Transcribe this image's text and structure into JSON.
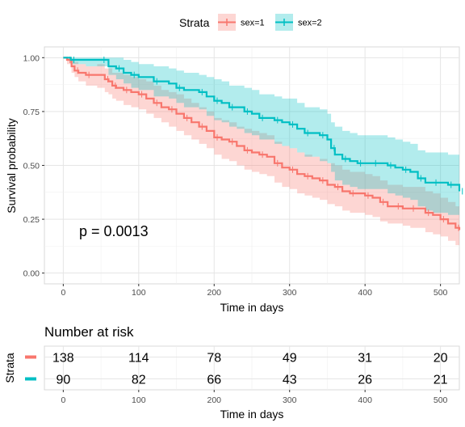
{
  "legend": {
    "title": "Strata",
    "items": [
      {
        "label": "sex=1",
        "color": "#F8766D"
      },
      {
        "label": "sex=2",
        "color": "#00BFC4"
      }
    ]
  },
  "chart_data": [
    {
      "type": "line",
      "subtype": "kaplan-meier survival curve with confidence bands",
      "xlabel": "Time in days",
      "ylabel": "Survival probability",
      "xlim": [
        -25,
        525
      ],
      "ylim": [
        -0.05,
        1.05
      ],
      "x_ticks": [
        0,
        100,
        200,
        300,
        400,
        500
      ],
      "y_ticks": [
        0.0,
        0.25,
        0.5,
        0.75,
        1.0
      ],
      "y_tick_labels": [
        "0.00",
        "0.25",
        "0.50",
        "0.75",
        "1.00"
      ],
      "grid": true,
      "annotation": "p = 0.0013",
      "series": [
        {
          "name": "sex=1",
          "color": "#F8766D",
          "x": [
            0,
            5,
            11,
            15,
            20,
            30,
            45,
            55,
            60,
            65,
            70,
            80,
            90,
            100,
            110,
            120,
            130,
            140,
            150,
            160,
            170,
            180,
            190,
            200,
            210,
            220,
            230,
            240,
            250,
            260,
            270,
            280,
            290,
            300,
            310,
            320,
            330,
            340,
            350,
            360,
            370,
            380,
            390,
            400,
            410,
            420,
            430,
            440,
            450,
            460,
            470,
            480,
            490,
            500,
            510,
            520,
            525
          ],
          "y": [
            1.0,
            0.99,
            0.96,
            0.94,
            0.93,
            0.92,
            0.92,
            0.9,
            0.89,
            0.87,
            0.86,
            0.85,
            0.84,
            0.83,
            0.81,
            0.79,
            0.77,
            0.76,
            0.74,
            0.72,
            0.7,
            0.68,
            0.66,
            0.63,
            0.62,
            0.61,
            0.59,
            0.57,
            0.56,
            0.55,
            0.54,
            0.51,
            0.49,
            0.48,
            0.46,
            0.45,
            0.44,
            0.43,
            0.41,
            0.4,
            0.38,
            0.37,
            0.37,
            0.36,
            0.35,
            0.33,
            0.31,
            0.31,
            0.3,
            0.3,
            0.3,
            0.28,
            0.27,
            0.25,
            0.23,
            0.21,
            0.2
          ],
          "ci_lower": [
            1.0,
            0.97,
            0.93,
            0.91,
            0.89,
            0.87,
            0.86,
            0.84,
            0.83,
            0.81,
            0.8,
            0.78,
            0.77,
            0.76,
            0.74,
            0.72,
            0.7,
            0.68,
            0.66,
            0.64,
            0.62,
            0.6,
            0.58,
            0.55,
            0.53,
            0.52,
            0.5,
            0.48,
            0.47,
            0.46,
            0.45,
            0.42,
            0.4,
            0.39,
            0.37,
            0.36,
            0.35,
            0.34,
            0.32,
            0.31,
            0.29,
            0.28,
            0.28,
            0.27,
            0.26,
            0.24,
            0.23,
            0.23,
            0.22,
            0.21,
            0.21,
            0.19,
            0.18,
            0.17,
            0.15,
            0.13,
            0.12
          ],
          "ci_upper": [
            1.0,
            1.0,
            0.99,
            0.98,
            0.97,
            0.96,
            0.97,
            0.95,
            0.95,
            0.93,
            0.93,
            0.92,
            0.91,
            0.9,
            0.89,
            0.87,
            0.85,
            0.84,
            0.83,
            0.81,
            0.79,
            0.77,
            0.75,
            0.72,
            0.71,
            0.7,
            0.68,
            0.67,
            0.66,
            0.65,
            0.64,
            0.61,
            0.59,
            0.58,
            0.56,
            0.55,
            0.54,
            0.53,
            0.51,
            0.5,
            0.48,
            0.47,
            0.47,
            0.46,
            0.45,
            0.43,
            0.41,
            0.41,
            0.4,
            0.4,
            0.4,
            0.38,
            0.37,
            0.35,
            0.33,
            0.31,
            0.3
          ]
        },
        {
          "name": "sex=2",
          "color": "#00BFC4",
          "x": [
            0,
            10,
            30,
            50,
            60,
            70,
            80,
            90,
            100,
            120,
            140,
            150,
            160,
            180,
            190,
            200,
            210,
            220,
            230,
            240,
            250,
            260,
            270,
            280,
            290,
            300,
            310,
            320,
            330,
            340,
            350,
            355,
            360,
            370,
            380,
            390,
            400,
            410,
            420,
            430,
            440,
            450,
            460,
            470,
            480,
            490,
            500,
            510,
            520,
            525
          ],
          "y": [
            1.0,
            0.99,
            0.99,
            0.99,
            0.96,
            0.95,
            0.93,
            0.92,
            0.91,
            0.89,
            0.88,
            0.86,
            0.85,
            0.84,
            0.82,
            0.8,
            0.79,
            0.77,
            0.77,
            0.75,
            0.74,
            0.72,
            0.72,
            0.71,
            0.7,
            0.69,
            0.67,
            0.65,
            0.65,
            0.64,
            0.62,
            0.58,
            0.55,
            0.53,
            0.52,
            0.51,
            0.51,
            0.51,
            0.51,
            0.5,
            0.49,
            0.48,
            0.47,
            0.44,
            0.42,
            0.42,
            0.42,
            0.41,
            0.41,
            0.38
          ],
          "ci_lower": [
            1.0,
            0.97,
            0.96,
            0.96,
            0.92,
            0.9,
            0.88,
            0.86,
            0.85,
            0.82,
            0.81,
            0.79,
            0.77,
            0.76,
            0.73,
            0.71,
            0.7,
            0.68,
            0.67,
            0.65,
            0.64,
            0.62,
            0.62,
            0.6,
            0.59,
            0.58,
            0.56,
            0.54,
            0.54,
            0.52,
            0.51,
            0.47,
            0.43,
            0.41,
            0.4,
            0.39,
            0.39,
            0.39,
            0.39,
            0.37,
            0.36,
            0.35,
            0.34,
            0.31,
            0.29,
            0.28,
            0.28,
            0.27,
            0.27,
            0.24
          ],
          "ci_upper": [
            1.0,
            1.0,
            1.0,
            1.0,
            1.0,
            1.0,
            0.99,
            0.98,
            0.97,
            0.96,
            0.95,
            0.94,
            0.93,
            0.92,
            0.91,
            0.9,
            0.89,
            0.87,
            0.87,
            0.86,
            0.85,
            0.83,
            0.83,
            0.82,
            0.81,
            0.81,
            0.79,
            0.77,
            0.77,
            0.76,
            0.74,
            0.7,
            0.68,
            0.66,
            0.65,
            0.64,
            0.64,
            0.64,
            0.64,
            0.63,
            0.62,
            0.61,
            0.6,
            0.57,
            0.56,
            0.56,
            0.56,
            0.55,
            0.55,
            0.53
          ]
        }
      ]
    },
    {
      "type": "table",
      "title": "Number at risk",
      "xlabel": "Time in days",
      "ylabel": "Strata",
      "x_ticks": [
        0,
        100,
        200,
        300,
        400,
        500
      ],
      "rows": [
        {
          "name": "sex=1",
          "color": "#F8766D",
          "values": [
            138,
            114,
            78,
            49,
            31,
            20
          ]
        },
        {
          "name": "sex=2",
          "color": "#00BFC4",
          "values": [
            90,
            82,
            66,
            43,
            26,
            21
          ]
        }
      ]
    }
  ]
}
